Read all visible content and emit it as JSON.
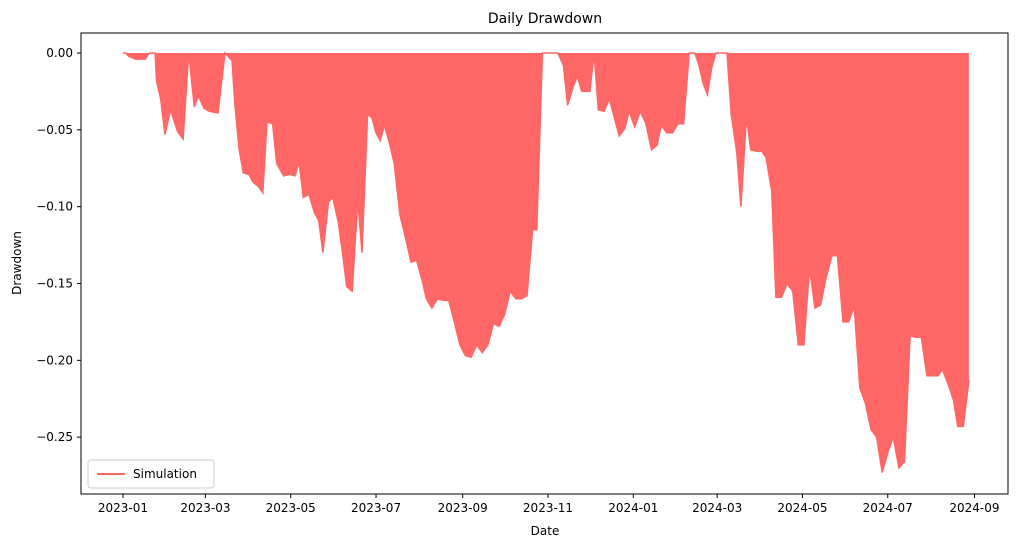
{
  "chart_data": {
    "type": "area",
    "title": "Daily Drawdown",
    "xlabel": "Date",
    "ylabel": "Drawdown",
    "x_axis": {
      "type": "date",
      "range": [
        "2022-12-02",
        "2024-09-25"
      ],
      "ticks": [
        "2023-01-01",
        "2023-03-01",
        "2023-05-01",
        "2023-07-01",
        "2023-09-01",
        "2023-11-01",
        "2024-01-01",
        "2024-03-01",
        "2024-05-01",
        "2024-07-01",
        "2024-09-01"
      ],
      "tick_labels": [
        "2023-01",
        "2023-03",
        "2023-05",
        "2023-07",
        "2023-09",
        "2023-11",
        "2024-01",
        "2024-03",
        "2024-05",
        "2024-07",
        "2024-09"
      ]
    },
    "y_axis": {
      "range": [
        -0.287,
        0.013
      ],
      "ticks": [
        0.0,
        -0.05,
        -0.1,
        -0.15,
        -0.2,
        -0.25
      ],
      "tick_labels": [
        "0.00",
        "−0.05",
        "−0.10",
        "−0.15",
        "−0.20",
        "−0.25"
      ]
    },
    "grid": false,
    "legend": {
      "position": "lower-left",
      "entries": [
        "Simulation"
      ]
    },
    "series": [
      {
        "name": "Simulation",
        "color": "#ff6666",
        "fill": true,
        "points": [
          [
            "2023-01-01",
            0.0
          ],
          [
            "2023-01-03",
            0.0
          ],
          [
            "2023-01-05",
            -0.002
          ],
          [
            "2023-01-10",
            -0.004
          ],
          [
            "2023-01-17",
            -0.004
          ],
          [
            "2023-01-20",
            0.0
          ],
          [
            "2023-01-24",
            0.0
          ],
          [
            "2023-01-25",
            -0.018
          ],
          [
            "2023-01-28",
            -0.03
          ],
          [
            "2023-01-31",
            -0.053
          ],
          [
            "2023-02-04",
            -0.037
          ],
          [
            "2023-02-09",
            -0.051
          ],
          [
            "2023-02-13",
            -0.056
          ],
          [
            "2023-02-17",
            0.0
          ],
          [
            "2023-02-21",
            -0.035
          ],
          [
            "2023-02-24",
            -0.028
          ],
          [
            "2023-02-28",
            -0.036
          ],
          [
            "2023-03-04",
            -0.038
          ],
          [
            "2023-03-10",
            -0.039
          ],
          [
            "2023-03-15",
            0.0
          ],
          [
            "2023-03-20",
            -0.005
          ],
          [
            "2023-03-22",
            -0.033
          ],
          [
            "2023-03-25",
            -0.062
          ],
          [
            "2023-03-28",
            -0.078
          ],
          [
            "2023-04-01",
            -0.079
          ],
          [
            "2023-04-04",
            -0.084
          ],
          [
            "2023-04-08",
            -0.087
          ],
          [
            "2023-04-11",
            -0.091
          ],
          [
            "2023-04-14",
            -0.045
          ],
          [
            "2023-04-18",
            -0.046
          ],
          [
            "2023-04-21",
            -0.072
          ],
          [
            "2023-04-26",
            -0.08
          ],
          [
            "2023-04-30",
            -0.079
          ],
          [
            "2023-05-04",
            -0.08
          ],
          [
            "2023-05-07",
            -0.071
          ],
          [
            "2023-05-10",
            -0.094
          ],
          [
            "2023-05-14",
            -0.092
          ],
          [
            "2023-05-18",
            -0.104
          ],
          [
            "2023-05-21",
            -0.109
          ],
          [
            "2023-05-24",
            -0.13
          ],
          [
            "2023-05-28",
            -0.097
          ],
          [
            "2023-05-31",
            -0.094
          ],
          [
            "2023-06-04",
            -0.11
          ],
          [
            "2023-06-07",
            -0.13
          ],
          [
            "2023-06-10",
            -0.152
          ],
          [
            "2023-06-14",
            -0.155
          ],
          [
            "2023-06-18",
            -0.096
          ],
          [
            "2023-06-21",
            -0.13
          ],
          [
            "2023-06-25",
            -0.04
          ],
          [
            "2023-06-28",
            -0.042
          ],
          [
            "2023-07-01",
            -0.052
          ],
          [
            "2023-07-04",
            -0.057
          ],
          [
            "2023-07-07",
            -0.047
          ],
          [
            "2023-07-11",
            -0.06
          ],
          [
            "2023-07-14",
            -0.072
          ],
          [
            "2023-07-18",
            -0.105
          ],
          [
            "2023-07-22",
            -0.12
          ],
          [
            "2023-07-26",
            -0.136
          ],
          [
            "2023-07-30",
            -0.135
          ],
          [
            "2023-08-03",
            -0.148
          ],
          [
            "2023-08-06",
            -0.16
          ],
          [
            "2023-08-10",
            -0.166
          ],
          [
            "2023-08-14",
            -0.16
          ],
          [
            "2023-08-18",
            -0.161
          ],
          [
            "2023-08-22",
            -0.161
          ],
          [
            "2023-08-26",
            -0.175
          ],
          [
            "2023-08-30",
            -0.19
          ],
          [
            "2023-09-03",
            -0.197
          ],
          [
            "2023-09-07",
            -0.198
          ],
          [
            "2023-09-11",
            -0.19
          ],
          [
            "2023-09-15",
            -0.195
          ],
          [
            "2023-09-19",
            -0.19
          ],
          [
            "2023-09-23",
            -0.176
          ],
          [
            "2023-09-27",
            -0.178
          ],
          [
            "2023-10-01",
            -0.17
          ],
          [
            "2023-10-05",
            -0.155
          ],
          [
            "2023-10-09",
            -0.16
          ],
          [
            "2023-10-13",
            -0.16
          ],
          [
            "2023-10-17",
            -0.158
          ],
          [
            "2023-10-21",
            -0.115
          ],
          [
            "2023-10-24",
            -0.115
          ],
          [
            "2023-10-28",
            0.0
          ],
          [
            "2023-11-01",
            0.0
          ],
          [
            "2023-11-05",
            0.0
          ],
          [
            "2023-11-08",
            0.0
          ],
          [
            "2023-11-12",
            -0.008
          ],
          [
            "2023-11-15",
            -0.034
          ],
          [
            "2023-11-19",
            -0.022
          ],
          [
            "2023-11-22",
            -0.015
          ],
          [
            "2023-11-25",
            -0.025
          ],
          [
            "2023-11-28",
            -0.025
          ],
          [
            "2023-12-01",
            -0.025
          ],
          [
            "2023-12-04",
            0.0
          ],
          [
            "2023-12-07",
            -0.037
          ],
          [
            "2023-12-11",
            -0.038
          ],
          [
            "2023-12-15",
            -0.03
          ],
          [
            "2023-12-19",
            -0.044
          ],
          [
            "2023-12-22",
            -0.054
          ],
          [
            "2023-12-26",
            -0.049
          ],
          [
            "2023-12-29",
            -0.038
          ],
          [
            "2024-01-02",
            -0.048
          ],
          [
            "2024-01-06",
            -0.038
          ],
          [
            "2024-01-10",
            -0.046
          ],
          [
            "2024-01-14",
            -0.063
          ],
          [
            "2024-01-18",
            -0.06
          ],
          [
            "2024-01-21",
            -0.047
          ],
          [
            "2024-01-25",
            -0.052
          ],
          [
            "2024-01-29",
            -0.052
          ],
          [
            "2024-02-02",
            -0.046
          ],
          [
            "2024-02-06",
            -0.046
          ],
          [
            "2024-02-10",
            0.0
          ],
          [
            "2024-02-14",
            0.0
          ],
          [
            "2024-02-17",
            -0.008
          ],
          [
            "2024-02-20",
            -0.02
          ],
          [
            "2024-02-23",
            -0.027
          ],
          [
            "2024-02-26",
            -0.01
          ],
          [
            "2024-02-29",
            0.0
          ],
          [
            "2024-03-04",
            0.0
          ],
          [
            "2024-03-08",
            0.0
          ],
          [
            "2024-03-11",
            -0.04
          ],
          [
            "2024-03-15",
            -0.065
          ],
          [
            "2024-03-18",
            -0.1
          ],
          [
            "2024-03-22",
            -0.042
          ],
          [
            "2024-03-25",
            -0.063
          ],
          [
            "2024-03-29",
            -0.064
          ],
          [
            "2024-04-02",
            -0.064
          ],
          [
            "2024-04-05",
            -0.068
          ],
          [
            "2024-04-09",
            -0.09
          ],
          [
            "2024-04-12",
            -0.159
          ],
          [
            "2024-04-16",
            -0.159
          ],
          [
            "2024-04-20",
            -0.15
          ],
          [
            "2024-04-24",
            -0.155
          ],
          [
            "2024-04-28",
            -0.19
          ],
          [
            "2024-05-02",
            -0.19
          ],
          [
            "2024-05-06",
            -0.14
          ],
          [
            "2024-05-10",
            -0.166
          ],
          [
            "2024-05-14",
            -0.164
          ],
          [
            "2024-05-18",
            -0.146
          ],
          [
            "2024-05-22",
            -0.132
          ],
          [
            "2024-05-26",
            -0.132
          ],
          [
            "2024-05-30",
            -0.175
          ],
          [
            "2024-06-03",
            -0.175
          ],
          [
            "2024-06-07",
            -0.165
          ],
          [
            "2024-06-11",
            -0.218
          ],
          [
            "2024-06-15",
            -0.228
          ],
          [
            "2024-06-19",
            -0.245
          ],
          [
            "2024-06-23",
            -0.25
          ],
          [
            "2024-06-27",
            -0.273
          ],
          [
            "2024-07-01",
            -0.26
          ],
          [
            "2024-07-05",
            -0.25
          ],
          [
            "2024-07-09",
            -0.27
          ],
          [
            "2024-07-13",
            -0.266
          ],
          [
            "2024-07-17",
            -0.184
          ],
          [
            "2024-07-21",
            -0.185
          ],
          [
            "2024-07-25",
            -0.185
          ],
          [
            "2024-07-29",
            -0.21
          ],
          [
            "2024-08-02",
            -0.21
          ],
          [
            "2024-08-06",
            -0.21
          ],
          [
            "2024-08-09",
            -0.206
          ],
          [
            "2024-08-13",
            -0.215
          ],
          [
            "2024-08-17",
            -0.226
          ],
          [
            "2024-08-20",
            -0.243
          ],
          [
            "2024-08-24",
            -0.243
          ],
          [
            "2024-08-28",
            -0.213
          ]
        ]
      }
    ]
  }
}
